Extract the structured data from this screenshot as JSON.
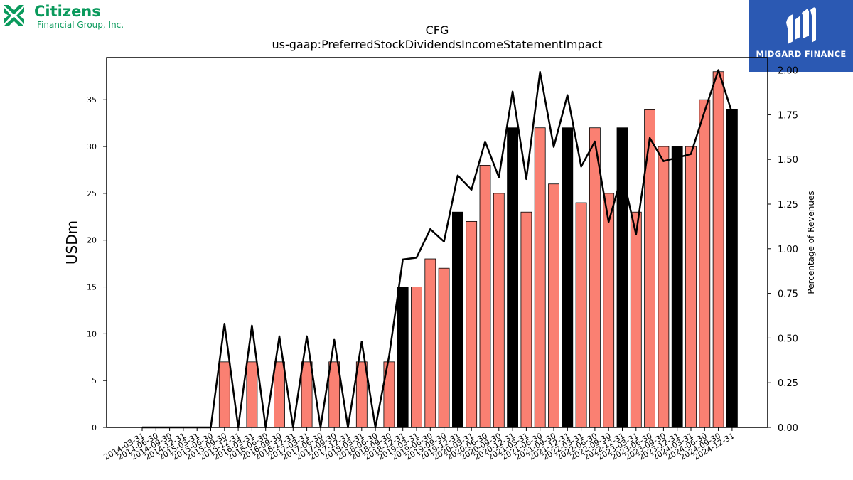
{
  "brand_left": {
    "name": "Citizens",
    "subtitle": "Financial Group, Inc.",
    "color": "#0a9a5c"
  },
  "brand_right": {
    "name": "MIDGARD FINANCE",
    "background": "#2b59b3"
  },
  "chart_data": {
    "type": "bar",
    "title": "CFG",
    "subtitle": "us-gaap:PreferredStockDividendsIncomeStatementImpact",
    "ylabel": "USDm",
    "y2label": "Percentage of Revenues",
    "ylim": [
      0,
      39.5
    ],
    "y2lim": [
      0,
      2.07
    ],
    "yticks": [
      0,
      5,
      10,
      15,
      20,
      25,
      30,
      35
    ],
    "y2ticks": [
      "0.00",
      "0.25",
      "0.50",
      "0.75",
      "1.00",
      "1.25",
      "1.50",
      "1.75",
      "2.00"
    ],
    "categories": [
      "2014-03-31",
      "2014-06-30",
      "2014-09-30",
      "2014-12-31",
      "2015-03-31",
      "2015-06-30",
      "2015-09-30",
      "2015-12-31",
      "2016-03-31",
      "2016-06-30",
      "2016-09-30",
      "2016-12-31",
      "2017-03-31",
      "2017-06-30",
      "2017-09-30",
      "2017-12-31",
      "2018-03-31",
      "2018-06-30",
      "2018-09-30",
      "2018-12-31",
      "2019-03-31",
      "2019-06-30",
      "2019-09-30",
      "2019-12-31",
      "2020-03-31",
      "2020-06-30",
      "2020-09-30",
      "2020-12-31",
      "2021-03-31",
      "2021-06-30",
      "2021-09-30",
      "2021-12-31",
      "2022-03-31",
      "2022-06-30",
      "2022-09-30",
      "2022-12-31",
      "2023-03-31",
      "2023-06-30",
      "2023-09-30",
      "2023-12-31",
      "2024-03-31",
      "2024-06-30",
      "2024-09-30",
      "2024-12-31"
    ],
    "series": [
      {
        "values": [
          0,
          0,
          0,
          0,
          0,
          0,
          7,
          0,
          7,
          0,
          7,
          0,
          7,
          0,
          7,
          0,
          7,
          0,
          7,
          15,
          15,
          18,
          17,
          23,
          22,
          28,
          25,
          32,
          23,
          32,
          26,
          32,
          24,
          32,
          25,
          32,
          23,
          34,
          30,
          30,
          30,
          35,
          38,
          34
        ],
        "highlight": [
          false,
          false,
          false,
          false,
          false,
          false,
          false,
          false,
          false,
          false,
          false,
          false,
          false,
          false,
          false,
          false,
          false,
          false,
          false,
          true,
          false,
          false,
          false,
          true,
          false,
          false,
          false,
          true,
          false,
          false,
          false,
          true,
          false,
          false,
          false,
          true,
          false,
          false,
          false,
          true,
          false,
          false,
          false,
          true
        ],
        "color": "#fa8072",
        "highlight_color": "#000000"
      },
      {
        "axis": "right",
        "values": [
          0,
          0,
          0,
          0,
          0,
          0,
          0.58,
          0,
          0.57,
          0,
          0.51,
          0,
          0.51,
          0,
          0.49,
          0,
          0.48,
          0,
          0.4,
          0.94,
          0.95,
          1.11,
          1.04,
          1.41,
          1.33,
          1.6,
          1.4,
          1.88,
          1.39,
          1.99,
          1.57,
          1.86,
          1.46,
          1.6,
          1.15,
          1.42,
          1.08,
          1.62,
          1.49,
          1.51,
          1.53,
          1.77,
          2.0,
          1.76
        ],
        "color": "#000000"
      }
    ]
  }
}
